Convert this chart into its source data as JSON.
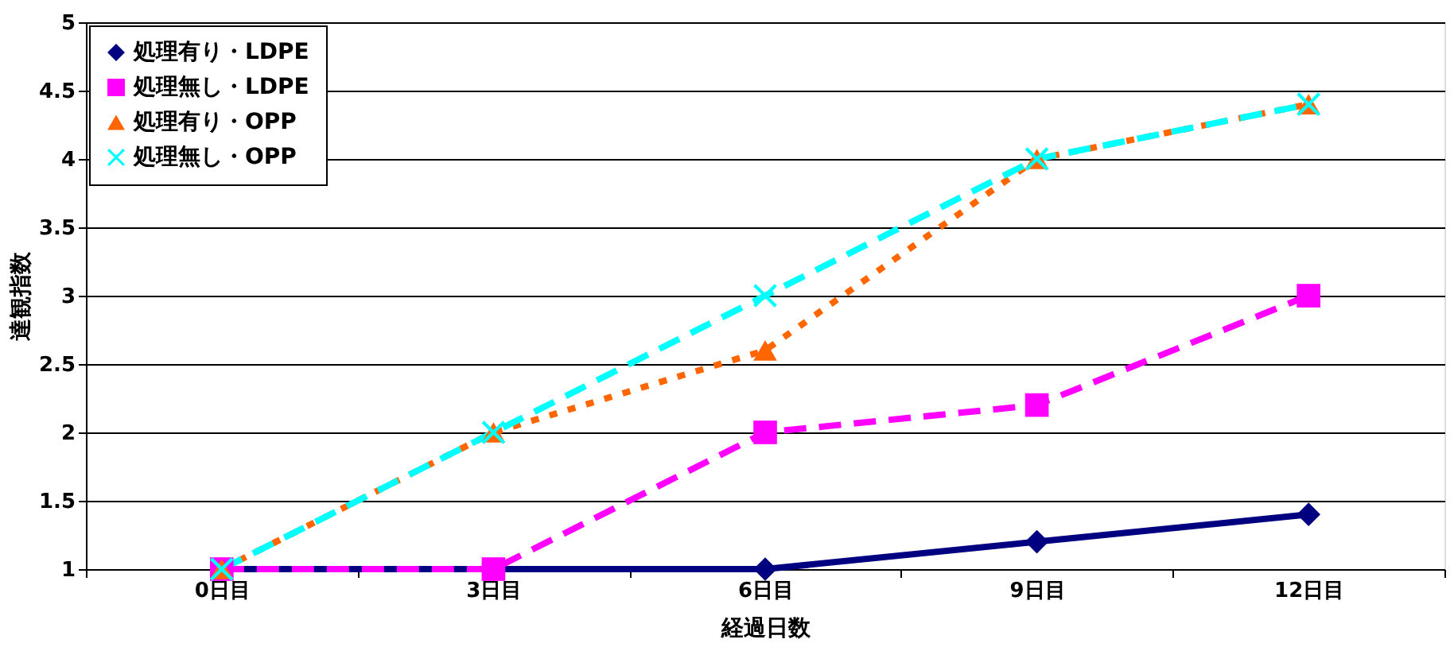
{
  "chart_data": {
    "type": "line",
    "xlabel": "経過日数",
    "ylabel": "達観指数",
    "categories": [
      "0日目",
      "3日目",
      "6日目",
      "9日目",
      "12日目"
    ],
    "series": [
      {
        "name": "処理有り・LDPE",
        "color": "#000080",
        "marker": "diamond",
        "line_style": "solid",
        "values": [
          1,
          1,
          1,
          1.2,
          1.4
        ]
      },
      {
        "name": "処理無し・LDPE",
        "color": "#ff00ff",
        "marker": "square",
        "line_style": "dashed",
        "values": [
          1,
          1,
          2,
          2.2,
          3
        ]
      },
      {
        "name": "処理有り・OPP",
        "color": "#ff6600",
        "marker": "triangle",
        "line_style": "dotted",
        "values": [
          1,
          2,
          2.6,
          4,
          4.4
        ]
      },
      {
        "name": "処理無し・OPP",
        "color": "#00ffff",
        "marker": "cross",
        "line_style": "dashed",
        "values": [
          1,
          2,
          3,
          4,
          4.4
        ]
      }
    ],
    "ylim": [
      1,
      5
    ],
    "yticks": [
      1,
      1.5,
      2,
      2.5,
      3,
      3.5,
      4,
      4.5,
      5
    ],
    "grid": "y",
    "legend": "top left"
  }
}
